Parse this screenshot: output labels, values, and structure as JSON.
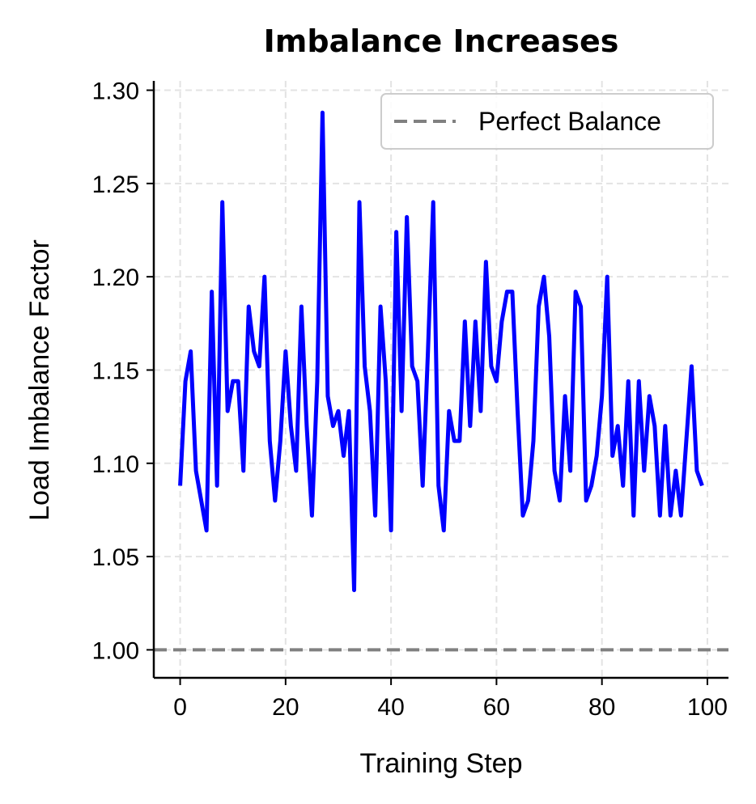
{
  "chart_data": {
    "type": "line",
    "title": "Imbalance Increases",
    "xlabel": "Training Step",
    "ylabel": "Load Imbalance Factor",
    "xlim": [
      -5,
      104
    ],
    "ylim": [
      0.985,
      1.305
    ],
    "xticks": [
      0,
      20,
      40,
      60,
      80,
      100
    ],
    "yticks": [
      1.0,
      1.05,
      1.1,
      1.15,
      1.2,
      1.25,
      1.3
    ],
    "ytick_labels": [
      "1.00",
      "1.05",
      "1.10",
      "1.15",
      "1.20",
      "1.25",
      "1.30"
    ],
    "xtick_labels": [
      "0",
      "20",
      "40",
      "60",
      "80",
      "100"
    ],
    "grid": true,
    "legend_position": "top-right",
    "series": [
      {
        "name": "Load Imbalance",
        "color": "#0000ff",
        "style": "solid",
        "show_in_legend": false,
        "x": [
          0,
          1,
          2,
          3,
          4,
          5,
          6,
          7,
          8,
          9,
          10,
          11,
          12,
          13,
          14,
          15,
          16,
          17,
          18,
          19,
          20,
          21,
          22,
          23,
          24,
          25,
          26,
          27,
          28,
          29,
          30,
          31,
          32,
          33,
          34,
          35,
          36,
          37,
          38,
          39,
          40,
          41,
          42,
          43,
          44,
          45,
          46,
          47,
          48,
          49,
          50,
          51,
          52,
          53,
          54,
          55,
          56,
          57,
          58,
          59,
          60,
          61,
          62,
          63,
          64,
          65,
          66,
          67,
          68,
          69,
          70,
          71,
          72,
          73,
          74,
          75,
          76,
          77,
          78,
          79,
          80,
          81,
          82,
          83,
          84,
          85,
          86,
          87,
          88,
          89,
          90,
          91,
          92,
          93,
          94,
          95,
          96,
          97,
          98,
          99
        ],
        "values": [
          1.088,
          1.144,
          1.16,
          1.096,
          1.08,
          1.064,
          1.192,
          1.088,
          1.24,
          1.128,
          1.144,
          1.144,
          1.096,
          1.184,
          1.16,
          1.152,
          1.2,
          1.112,
          1.08,
          1.112,
          1.16,
          1.12,
          1.096,
          1.184,
          1.12,
          1.072,
          1.144,
          1.288,
          1.136,
          1.12,
          1.128,
          1.104,
          1.128,
          1.032,
          1.24,
          1.152,
          1.128,
          1.072,
          1.184,
          1.144,
          1.064,
          1.224,
          1.128,
          1.232,
          1.152,
          1.144,
          1.088,
          1.16,
          1.24,
          1.088,
          1.064,
          1.128,
          1.112,
          1.112,
          1.176,
          1.12,
          1.176,
          1.128,
          1.208,
          1.152,
          1.144,
          1.176,
          1.192,
          1.192,
          1.128,
          1.072,
          1.08,
          1.112,
          1.184,
          1.2,
          1.168,
          1.096,
          1.08,
          1.136,
          1.096,
          1.192,
          1.184,
          1.08,
          1.088,
          1.104,
          1.136,
          1.2,
          1.104,
          1.12,
          1.088,
          1.144,
          1.072,
          1.144,
          1.096,
          1.136,
          1.12,
          1.072,
          1.12,
          1.072,
          1.096,
          1.072,
          1.112,
          1.152,
          1.096,
          1.088
        ]
      },
      {
        "name": "Perfect Balance",
        "color": "#808080",
        "style": "dashed",
        "show_in_legend": true,
        "y_constant": 1.0
      }
    ]
  }
}
